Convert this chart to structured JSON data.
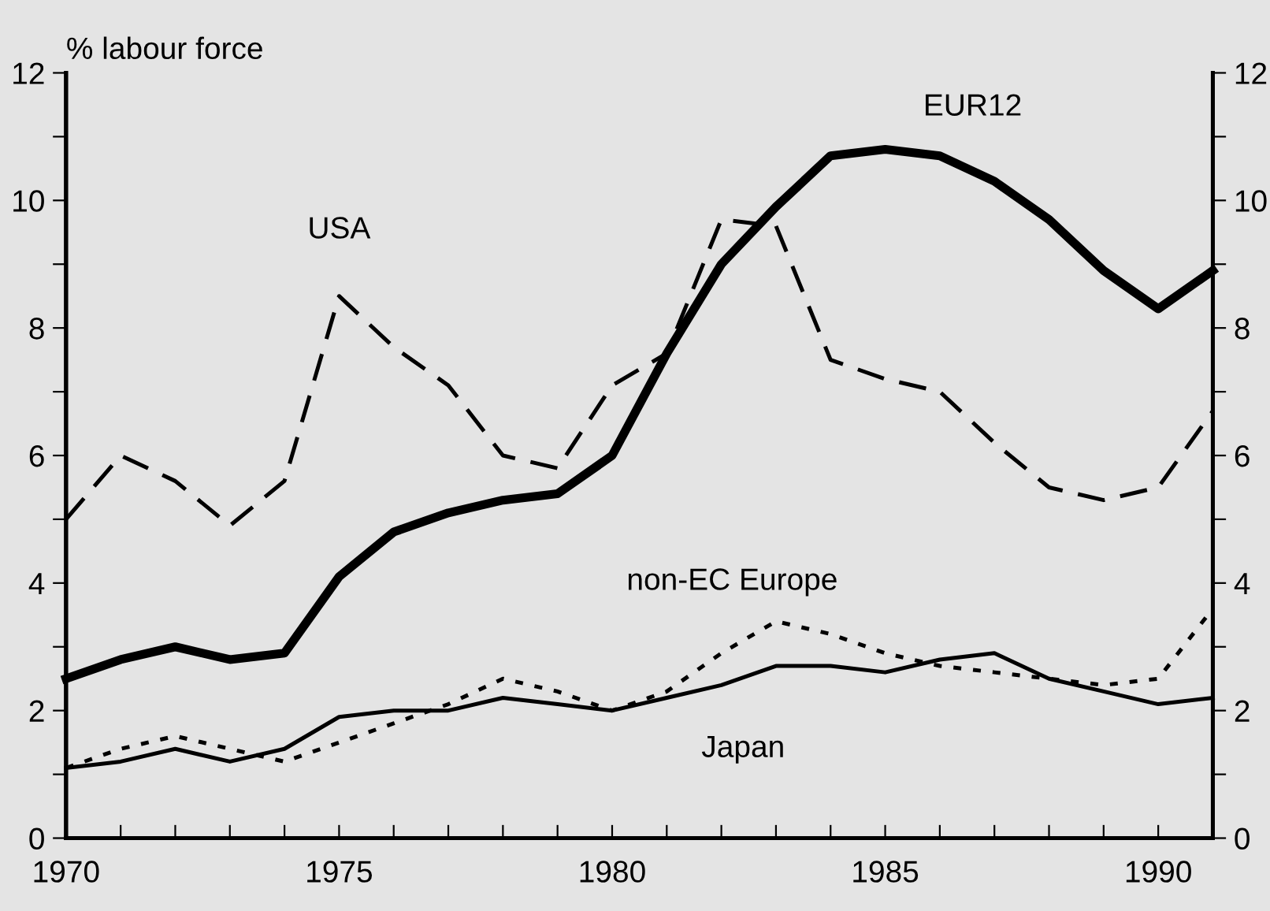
{
  "chart_data": {
    "type": "line",
    "ylabel": "% labour force",
    "x": [
      1970,
      1971,
      1972,
      1973,
      1974,
      1975,
      1976,
      1977,
      1978,
      1979,
      1980,
      1981,
      1982,
      1983,
      1984,
      1985,
      1986,
      1987,
      1988,
      1989,
      1990,
      1991
    ],
    "series": [
      {
        "name": "EUR12",
        "color": "#000000",
        "line_style": "solid",
        "values": [
          2.5,
          2.8,
          3.0,
          2.8,
          2.9,
          4.1,
          4.8,
          5.1,
          5.3,
          5.4,
          6.0,
          7.6,
          9.0,
          9.9,
          10.7,
          10.8,
          10.7,
          10.3,
          9.7,
          8.9,
          8.3,
          8.9
        ]
      },
      {
        "name": "USA",
        "color": "#000000",
        "line_style": "dashed",
        "values": [
          5.0,
          6.0,
          5.6,
          4.9,
          5.6,
          8.5,
          7.7,
          7.1,
          6.0,
          5.8,
          7.1,
          7.6,
          9.7,
          9.6,
          7.5,
          7.2,
          7.0,
          6.2,
          5.5,
          5.3,
          5.5,
          6.7
        ]
      },
      {
        "name": "non-EC Europe",
        "color": "#000000",
        "line_style": "dotted",
        "values": [
          1.1,
          1.4,
          1.6,
          1.4,
          1.2,
          1.5,
          1.8,
          2.1,
          2.5,
          2.3,
          2.0,
          2.3,
          2.9,
          3.4,
          3.2,
          2.9,
          2.7,
          2.6,
          2.5,
          2.4,
          2.5,
          3.6
        ]
      },
      {
        "name": "Japan",
        "color": "#000000",
        "line_style": "solid",
        "values": [
          1.1,
          1.2,
          1.4,
          1.2,
          1.4,
          1.9,
          2.0,
          2.0,
          2.2,
          2.1,
          2.0,
          2.2,
          2.4,
          2.7,
          2.7,
          2.6,
          2.8,
          2.9,
          2.5,
          2.3,
          2.1,
          2.2
        ]
      }
    ],
    "xlim": [
      1970,
      1991
    ],
    "xticks": [
      1970,
      {
        "value": 1971,
        "label": null
      },
      {
        "value": 1972,
        "label": null
      },
      {
        "value": 1973,
        "label": null
      },
      {
        "value": 1974,
        "label": null
      },
      1975,
      {
        "value": 1976,
        "label": null
      },
      {
        "value": 1977,
        "label": null
      },
      {
        "value": 1978,
        "label": null
      },
      {
        "value": 1979,
        "label": null
      },
      1980,
      {
        "value": 1981,
        "label": null
      },
      {
        "value": 1982,
        "label": null
      },
      {
        "value": 1983,
        "label": null
      },
      {
        "value": 1984,
        "label": null
      },
      1985,
      {
        "value": 1986,
        "label": null
      },
      {
        "value": 1987,
        "label": null
      },
      {
        "value": 1988,
        "label": null
      },
      {
        "value": 1989,
        "label": null
      },
      1990,
      {
        "value": 1991,
        "label": null
      }
    ],
    "ylim": [
      0,
      12
    ],
    "yticks": [
      0,
      {
        "value": 1,
        "label": null
      },
      2,
      {
        "value": 3,
        "label": null
      },
      4,
      {
        "value": 5,
        "label": null
      },
      6,
      {
        "value": 7,
        "label": null
      },
      8,
      {
        "value": 9,
        "label": null
      },
      10,
      {
        "value": 11,
        "label": null
      },
      12
    ],
    "y2lim": [
      0,
      12
    ],
    "y2ticks": [
      0,
      {
        "value": 1,
        "label": null
      },
      2,
      {
        "value": 3,
        "label": null
      },
      4,
      {
        "value": 5,
        "label": null
      },
      6,
      {
        "value": 7,
        "label": null
      },
      8,
      {
        "value": 9,
        "label": null
      },
      10,
      {
        "value": 11,
        "label": null
      },
      12
    ],
    "grid": false,
    "legend": false
  }
}
